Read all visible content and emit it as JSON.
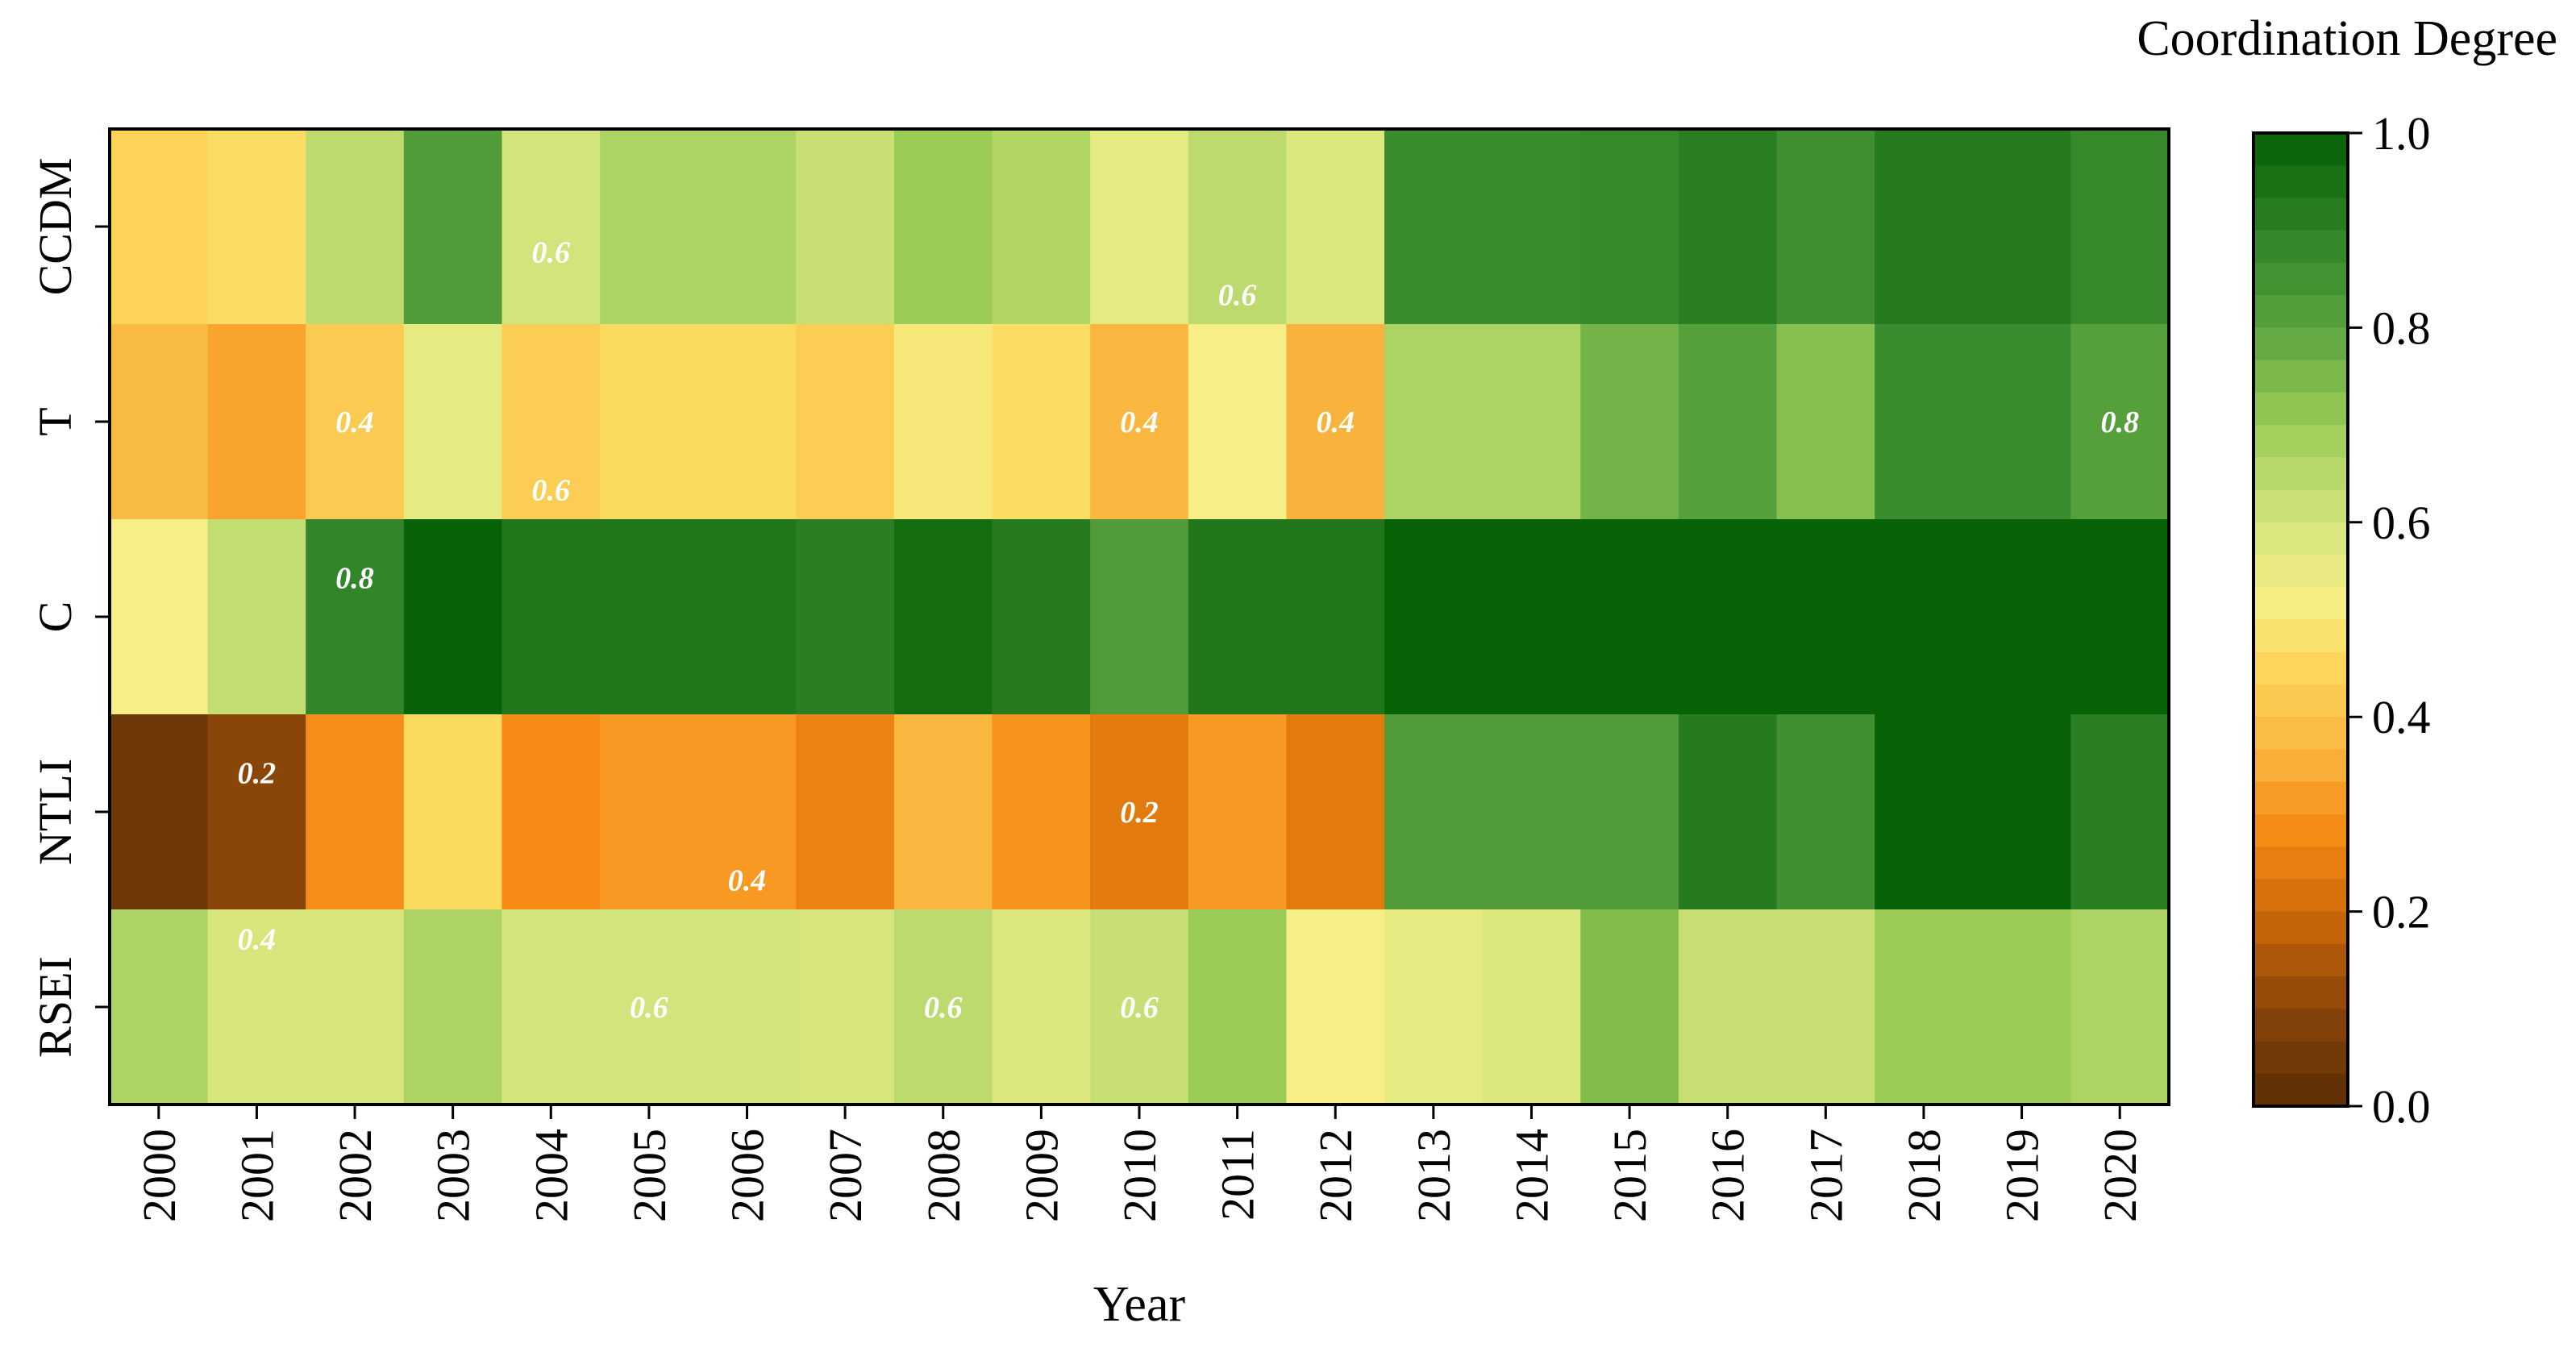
{
  "chart_data": {
    "type": "heatmap",
    "title": "",
    "xlabel": "Year",
    "ylabel": "",
    "colorbar_label": "Coordination Degree",
    "colorbar_range": [
      0.0,
      1.0
    ],
    "colorbar_ticks": [
      "0.0",
      "0.2",
      "0.4",
      "0.6",
      "0.8",
      "1.0"
    ],
    "x": [
      "2000",
      "2001",
      "2002",
      "2003",
      "2004",
      "2005",
      "2006",
      "2007",
      "2008",
      "2009",
      "2010",
      "2011",
      "2012",
      "2013",
      "2014",
      "2015",
      "2016",
      "2017",
      "2018",
      "2019",
      "2020"
    ],
    "y": [
      "CCDM",
      "T",
      "C",
      "NTLI",
      "RSEI"
    ],
    "values": [
      [
        0.44,
        0.47,
        0.64,
        0.82,
        0.6,
        0.67,
        0.67,
        0.62,
        0.7,
        0.66,
        0.56,
        0.64,
        0.58,
        0.87,
        0.87,
        0.88,
        0.91,
        0.86,
        0.92,
        0.92,
        0.88
      ],
      [
        0.38,
        0.33,
        0.42,
        0.56,
        0.43,
        0.46,
        0.46,
        0.43,
        0.5,
        0.47,
        0.37,
        0.52,
        0.36,
        0.67,
        0.67,
        0.76,
        0.81,
        0.73,
        0.87,
        0.87,
        0.81
      ],
      [
        0.52,
        0.63,
        0.89,
        0.99,
        0.93,
        0.93,
        0.93,
        0.91,
        0.96,
        0.92,
        0.82,
        0.93,
        0.93,
        0.99,
        0.99,
        0.99,
        0.99,
        0.99,
        0.99,
        0.99,
        0.99
      ],
      [
        0.04,
        0.1,
        0.29,
        0.46,
        0.28,
        0.31,
        0.31,
        0.26,
        0.37,
        0.3,
        0.24,
        0.31,
        0.24,
        0.82,
        0.82,
        0.82,
        0.92,
        0.86,
        0.99,
        0.99,
        0.91
      ],
      [
        0.67,
        0.59,
        0.59,
        0.67,
        0.6,
        0.6,
        0.6,
        0.59,
        0.64,
        0.58,
        0.62,
        0.7,
        0.52,
        0.56,
        0.58,
        0.74,
        0.62,
        0.62,
        0.7,
        0.7,
        0.67
      ]
    ],
    "annotations": [
      {
        "row": 0,
        "col": 4,
        "text": "0.6",
        "align": "lower"
      },
      {
        "row": 0,
        "col": 11,
        "text": "0.6",
        "align": "bottom"
      },
      {
        "row": 1,
        "col": 2,
        "text": "0.4",
        "align": "middle"
      },
      {
        "row": 1,
        "col": 4,
        "text": "0.6",
        "align": "bottom"
      },
      {
        "row": 1,
        "col": 10,
        "text": "0.4",
        "align": "middle"
      },
      {
        "row": 1,
        "col": 12,
        "text": "0.4",
        "align": "middle"
      },
      {
        "row": 1,
        "col": 20,
        "text": "0.8",
        "align": "middle"
      },
      {
        "row": 2,
        "col": 2,
        "text": "0.8",
        "align": "upper"
      },
      {
        "row": 3,
        "col": 1,
        "text": "0.2",
        "align": "upper"
      },
      {
        "row": 3,
        "col": 10,
        "text": "0.2",
        "align": "middle"
      },
      {
        "row": 3,
        "col": 6,
        "text": "0.4",
        "align": "bottom"
      },
      {
        "row": 4,
        "col": 1,
        "text": "0.4",
        "align": "top"
      },
      {
        "row": 4,
        "col": 5,
        "text": "0.6",
        "align": "middle"
      },
      {
        "row": 4,
        "col": 8,
        "text": "0.6",
        "align": "middle"
      },
      {
        "row": 4,
        "col": 10,
        "text": "0.6",
        "align": "middle"
      }
    ],
    "colorscale": [
      {
        "v": 0.0,
        "color": "#5a2e06"
      },
      {
        "v": 0.1,
        "color": "#8a4508"
      },
      {
        "v": 0.2,
        "color": "#cf6a08"
      },
      {
        "v": 0.28,
        "color": "#f58a14"
      },
      {
        "v": 0.36,
        "color": "#f9b33c"
      },
      {
        "v": 0.45,
        "color": "#fcd65a"
      },
      {
        "v": 0.52,
        "color": "#f7ef85"
      },
      {
        "v": 0.6,
        "color": "#d3e47c"
      },
      {
        "v": 0.7,
        "color": "#9ccc58"
      },
      {
        "v": 0.8,
        "color": "#5aa33d"
      },
      {
        "v": 0.9,
        "color": "#2e8227"
      },
      {
        "v": 1.0,
        "color": "#045f04"
      }
    ]
  }
}
